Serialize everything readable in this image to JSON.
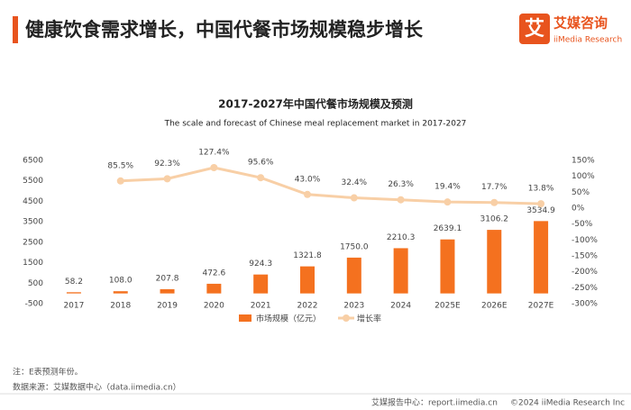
{
  "header": {
    "title": "健康饮食需求增长，中国代餐市场规模稳步增长",
    "logo_icon": "艾",
    "logo_name": "艾媒咨询",
    "logo_sub": "iiMedia Research"
  },
  "chart_data": {
    "type": "bar",
    "title": "2017-2027年中国代餐市场规模及预测",
    "subtitle": "The scale and forecast of Chinese meal replacement market in 2017-2027",
    "categories": [
      "2017",
      "2018",
      "2019",
      "2020",
      "2021",
      "2022",
      "2023",
      "2024",
      "2025E",
      "2026E",
      "2027E"
    ],
    "series": [
      {
        "name": "市场规模（亿元）",
        "type": "bar",
        "color": "#f4711f",
        "values": [
          58.2,
          108.0,
          207.8,
          472.6,
          924.3,
          1321.8,
          1750.0,
          2210.3,
          2639.1,
          3106.2,
          3534.9
        ],
        "value_labels": [
          "58.2",
          "108.0",
          "207.8",
          "472.6",
          "924.3",
          "1321.8",
          "1750.0",
          "2210.3",
          "2639.1",
          "3106.2",
          "3534.9"
        ]
      },
      {
        "name": "增长率",
        "type": "line",
        "axis": "y2",
        "color": "#f8cfa6",
        "values": [
          null,
          85.5,
          92.3,
          127.4,
          95.6,
          43.0,
          32.4,
          26.3,
          19.4,
          17.7,
          13.8
        ],
        "value_labels": [
          null,
          "85.5%",
          "92.3%",
          "127.4%",
          "95.6%",
          "43.0%",
          "32.4%",
          "26.3%",
          "19.4%",
          "17.7%",
          "13.8%"
        ]
      }
    ],
    "ylim": [
      -500,
      6500
    ],
    "yticks": [
      -500,
      500,
      1500,
      2500,
      3500,
      4500,
      5500,
      6500
    ],
    "y2lim": [
      -300,
      150
    ],
    "y2ticks": [
      {
        "value": -300,
        "label": "-300%"
      },
      {
        "value": -250,
        "label": "-250%"
      },
      {
        "value": -200,
        "label": "-200%"
      },
      {
        "value": -150,
        "label": "-150%"
      },
      {
        "value": -100,
        "label": "-100%"
      },
      {
        "value": -50,
        "label": "-50%"
      },
      {
        "value": 0,
        "label": "0%"
      },
      {
        "value": 50,
        "label": "50%"
      },
      {
        "value": 100,
        "label": "100%"
      },
      {
        "value": 150,
        "label": "150%"
      }
    ]
  },
  "footer": {
    "note": "注：E表预测年份。",
    "source": "数据来源：艾媒数据中心（data.iimedia.cn）",
    "report": "艾媒报告中心：report.iimedia.cn",
    "copyright": "©2024  iiMedia Research  Inc"
  }
}
